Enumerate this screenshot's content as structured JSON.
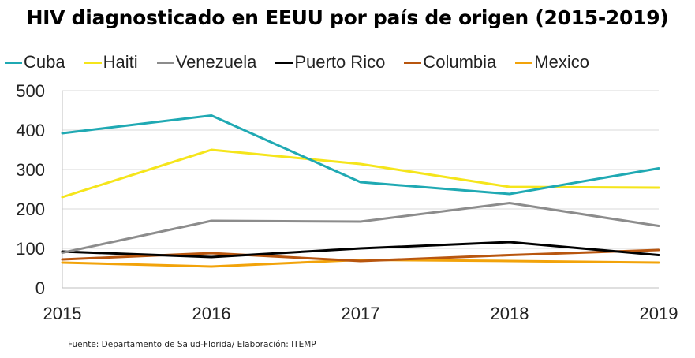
{
  "chart_data": {
    "type": "line",
    "title": "HIV diagnosticado en EEUU por país de origen (2015-2019)",
    "xlabel": "",
    "ylabel": "",
    "x": [
      "2015",
      "2016",
      "2017",
      "2018",
      "2019"
    ],
    "ylim": [
      0,
      500
    ],
    "yticks": [
      "0",
      "100",
      "200",
      "300",
      "400",
      "500"
    ],
    "grid": "horizontal",
    "legend_position": "top",
    "series": [
      {
        "name": "Cuba",
        "color": "#1fa9b3",
        "values": [
          392,
          437,
          268,
          238,
          303
        ]
      },
      {
        "name": "Haiti",
        "color": "#f5e51b",
        "values": [
          230,
          350,
          314,
          256,
          254
        ]
      },
      {
        "name": "Venezuela",
        "color": "#8c8c8c",
        "values": [
          89,
          170,
          168,
          215,
          157
        ]
      },
      {
        "name": "Puerto Rico",
        "color": "#000000",
        "values": [
          92,
          78,
          100,
          116,
          83
        ]
      },
      {
        "name": "Columbia",
        "color": "#b8560f",
        "values": [
          72,
          88,
          68,
          83,
          96
        ]
      },
      {
        "name": "Mexico",
        "color": "#f2a30a",
        "values": [
          64,
          54,
          71,
          68,
          64
        ]
      }
    ]
  },
  "source": "Fuente: Departamento de Salud-Florida/ Elaboración: ITEMP"
}
